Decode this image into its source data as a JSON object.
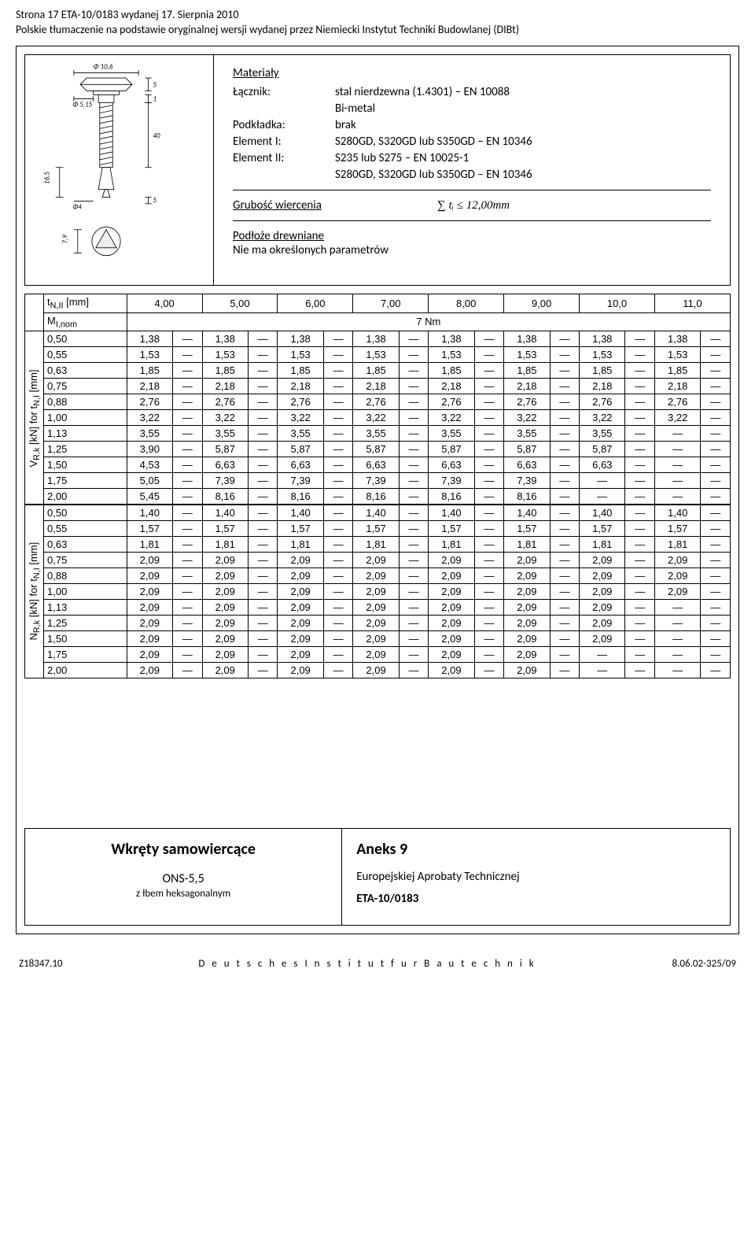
{
  "header": {
    "line1": "Strona 17 ETA-10/0183 wydanej 17. Sierpnia 2010",
    "line2": "Polskie tłumaczenie na podstawie oryginalnej wersji wydanej przez Niemiecki Instytut Techniki Budowlanej (DIBt)"
  },
  "diagram": {
    "phi_top": "Φ 10,6",
    "phi_shaft": "Φ 5,15",
    "phi_tip": "Φ4",
    "dim5a": "5",
    "dim1": "1",
    "dim40": "40",
    "dim165": "16,5",
    "dim5b": "5",
    "dim79": "7,9"
  },
  "materials": {
    "title": "Materiały",
    "rows": [
      {
        "label": "Łącznik:",
        "value": "stal nierdzewna (1.4301) – EN 10088"
      },
      {
        "label": "",
        "value": "Bi-metal"
      },
      {
        "label": "Podkładka:",
        "value": "brak"
      },
      {
        "label": "Element I:",
        "value": "S280GD, S320GD lub S350GD – EN 10346"
      },
      {
        "label": "Element II:",
        "value": "S235 lub S275 – EN 10025-1"
      },
      {
        "label": "",
        "value": "S280GD, S320GD lub S350GD – EN 10346"
      }
    ]
  },
  "thickness": {
    "label": "Grubość wiercenia",
    "formula": "∑ tᵢ  ≤ 12,00mm"
  },
  "wood": {
    "title": "Podłoże drewniane",
    "note": "Nie ma określonych parametrów"
  },
  "table": {
    "tn_label": "t_{N,II} [mm]",
    "ml_label": "M_{I,nom}",
    "ml_value": "7 Nm",
    "tn_values": [
      "4,00",
      "5,00",
      "6,00",
      "7,00",
      "8,00",
      "9,00",
      "10,0",
      "11,0"
    ],
    "ylabel_v": "V_{R,k} [kN] for t_{N,I} [mm]",
    "ylabel_n": "N_{R,k} [kN] for t_{N,I} [mm]",
    "t_values": [
      "0,50",
      "0,55",
      "0,63",
      "0,75",
      "0,88",
      "1,00",
      "1,13",
      "1,25",
      "1,50",
      "1,75",
      "2,00"
    ],
    "v_rows": [
      [
        "1,38",
        "—",
        "1,38",
        "—",
        "1,38",
        "—",
        "1,38",
        "—",
        "1,38",
        "—",
        "1,38",
        "—",
        "1,38",
        "—",
        "1,38",
        "—"
      ],
      [
        "1,53",
        "—",
        "1,53",
        "—",
        "1,53",
        "—",
        "1,53",
        "—",
        "1,53",
        "—",
        "1,53",
        "—",
        "1,53",
        "—",
        "1,53",
        "—"
      ],
      [
        "1,85",
        "—",
        "1,85",
        "—",
        "1,85",
        "—",
        "1,85",
        "—",
        "1,85",
        "—",
        "1,85",
        "—",
        "1,85",
        "—",
        "1,85",
        "—"
      ],
      [
        "2,18",
        "—",
        "2,18",
        "—",
        "2,18",
        "—",
        "2,18",
        "—",
        "2,18",
        "—",
        "2,18",
        "—",
        "2,18",
        "—",
        "2,18",
        "—"
      ],
      [
        "2,76",
        "—",
        "2,76",
        "—",
        "2,76",
        "—",
        "2,76",
        "—",
        "2,76",
        "—",
        "2,76",
        "—",
        "2,76",
        "—",
        "2,76",
        "—"
      ],
      [
        "3,22",
        "—",
        "3,22",
        "—",
        "3,22",
        "—",
        "3,22",
        "—",
        "3,22",
        "—",
        "3,22",
        "—",
        "3,22",
        "—",
        "3,22",
        "—"
      ],
      [
        "3,55",
        "—",
        "3,55",
        "—",
        "3,55",
        "—",
        "3,55",
        "—",
        "3,55",
        "—",
        "3,55",
        "—",
        "3,55",
        "—",
        "—",
        "—"
      ],
      [
        "3,90",
        "—",
        "5,87",
        "—",
        "5,87",
        "—",
        "5,87",
        "—",
        "5,87",
        "—",
        "5,87",
        "—",
        "5,87",
        "—",
        "—",
        "—"
      ],
      [
        "4,53",
        "—",
        "6,63",
        "—",
        "6,63",
        "—",
        "6,63",
        "—",
        "6,63",
        "—",
        "6,63",
        "—",
        "6,63",
        "—",
        "—",
        "—"
      ],
      [
        "5,05",
        "—",
        "7,39",
        "—",
        "7,39",
        "—",
        "7,39",
        "—",
        "7,39",
        "—",
        "7,39",
        "—",
        "—",
        "—",
        "—",
        "—"
      ],
      [
        "5,45",
        "—",
        "8,16",
        "—",
        "8,16",
        "—",
        "8,16",
        "—",
        "8,16",
        "—",
        "8,16",
        "—",
        "—",
        "—",
        "—",
        "—"
      ]
    ],
    "n_rows": [
      [
        "1,40",
        "—",
        "1,40",
        "—",
        "1,40",
        "—",
        "1,40",
        "—",
        "1,40",
        "—",
        "1,40",
        "—",
        "1,40",
        "—",
        "1,40",
        "—"
      ],
      [
        "1,57",
        "—",
        "1,57",
        "—",
        "1,57",
        "—",
        "1,57",
        "—",
        "1,57",
        "—",
        "1,57",
        "—",
        "1,57",
        "—",
        "1,57",
        "—"
      ],
      [
        "1,81",
        "—",
        "1,81",
        "—",
        "1,81",
        "—",
        "1,81",
        "—",
        "1,81",
        "—",
        "1,81",
        "—",
        "1,81",
        "—",
        "1,81",
        "—"
      ],
      [
        "2,09",
        "—",
        "2,09",
        "—",
        "2,09",
        "—",
        "2,09",
        "—",
        "2,09",
        "—",
        "2,09",
        "—",
        "2,09",
        "—",
        "2,09",
        "—"
      ],
      [
        "2,09",
        "—",
        "2,09",
        "—",
        "2,09",
        "—",
        "2,09",
        "—",
        "2,09",
        "—",
        "2,09",
        "—",
        "2,09",
        "—",
        "2,09",
        "—"
      ],
      [
        "2,09",
        "—",
        "2,09",
        "—",
        "2,09",
        "—",
        "2,09",
        "—",
        "2,09",
        "—",
        "2,09",
        "—",
        "2,09",
        "—",
        "2,09",
        "—"
      ],
      [
        "2,09",
        "—",
        "2,09",
        "—",
        "2,09",
        "—",
        "2,09",
        "—",
        "2,09",
        "—",
        "2,09",
        "—",
        "2,09",
        "—",
        "—",
        "—"
      ],
      [
        "2,09",
        "—",
        "2,09",
        "—",
        "2,09",
        "—",
        "2,09",
        "—",
        "2,09",
        "—",
        "2,09",
        "—",
        "2,09",
        "—",
        "—",
        "—"
      ],
      [
        "2,09",
        "—",
        "2,09",
        "—",
        "2,09",
        "—",
        "2,09",
        "—",
        "2,09",
        "—",
        "2,09",
        "—",
        "2,09",
        "—",
        "—",
        "—"
      ],
      [
        "2,09",
        "—",
        "2,09",
        "—",
        "2,09",
        "—",
        "2,09",
        "—",
        "2,09",
        "—",
        "2,09",
        "—",
        "—",
        "—",
        "—",
        "—"
      ],
      [
        "2,09",
        "—",
        "2,09",
        "—",
        "2,09",
        "—",
        "2,09",
        "—",
        "2,09",
        "—",
        "2,09",
        "—",
        "—",
        "—",
        "—",
        "—"
      ]
    ]
  },
  "footer": {
    "left_title": "Wkręty samowiercące",
    "model": "ONS-5,5",
    "model_sub": "z łbem heksagonalnym",
    "annex": "Aneks 9",
    "approval_line": "Europejskiej Aprobaty Technicznej",
    "eta": "ETA-10/0183"
  },
  "page_footer": {
    "left": "Z18347.10",
    "center": "D e u t s c h e s   I n s t i t u t   f u r   B a u t e c h n i k",
    "right": "8.06.02-325/09"
  }
}
